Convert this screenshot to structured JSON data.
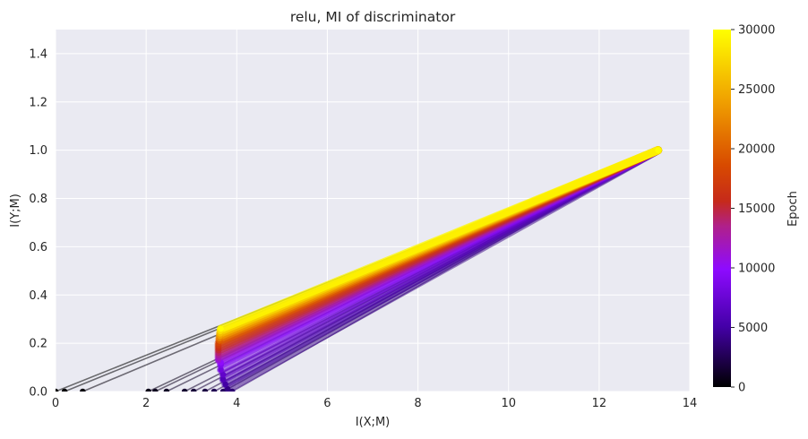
{
  "chart_data": {
    "type": "line",
    "title": "relu, MI of discriminator",
    "xlabel": "I(X;M)",
    "ylabel": "I(Y;M)",
    "xlim": [
      0,
      14
    ],
    "ylim": [
      0,
      1.5
    ],
    "x_ticks": [
      "0",
      "2",
      "4",
      "6",
      "8",
      "10",
      "12",
      "14"
    ],
    "y_ticks": [
      "0.0",
      "0.2",
      "0.4",
      "0.6",
      "0.8",
      "1.0",
      "1.2",
      "1.4"
    ],
    "grid": true,
    "colorbar": {
      "label": "Epoch",
      "range": [
        0,
        30000
      ],
      "ticks": [
        "0",
        "5000",
        "10000",
        "15000",
        "20000",
        "25000",
        "30000"
      ],
      "colormap": "gnuplot",
      "stops": [
        "#000000",
        "#4400a8",
        "#8e0bff",
        "#c61f2a",
        "#d81e00",
        "#f0a000",
        "#ffff00"
      ]
    },
    "endpoint": {
      "x": 13.3,
      "y": 1.0
    },
    "epoch_start_points": [
      {
        "epoch": 0,
        "x": 0.0,
        "y": 0.0
      },
      {
        "epoch": 150,
        "x": 0.2,
        "y": 0.0
      },
      {
        "epoch": 400,
        "x": 0.6,
        "y": 0.0
      },
      {
        "epoch": 700,
        "x": 2.05,
        "y": 0.0
      },
      {
        "epoch": 900,
        "x": 2.2,
        "y": 0.0
      },
      {
        "epoch": 1100,
        "x": 2.45,
        "y": 0.0
      },
      {
        "epoch": 1400,
        "x": 2.85,
        "y": 0.0
      },
      {
        "epoch": 1700,
        "x": 3.05,
        "y": 0.0
      },
      {
        "epoch": 2000,
        "x": 3.3,
        "y": 0.0
      },
      {
        "epoch": 2500,
        "x": 3.5,
        "y": 0.0
      },
      {
        "epoch": 3000,
        "x": 3.7,
        "y": 0.0
      },
      {
        "epoch": 3500,
        "x": 3.9,
        "y": 0.0
      },
      {
        "epoch": 4000,
        "x": 3.8,
        "y": 0.01
      },
      {
        "epoch": 5000,
        "x": 3.75,
        "y": 0.03
      },
      {
        "epoch": 6000,
        "x": 3.7,
        "y": 0.05
      },
      {
        "epoch": 7000,
        "x": 3.7,
        "y": 0.07
      },
      {
        "epoch": 8000,
        "x": 3.65,
        "y": 0.09
      },
      {
        "epoch": 9000,
        "x": 3.65,
        "y": 0.11
      },
      {
        "epoch": 10000,
        "x": 3.65,
        "y": 0.12
      },
      {
        "epoch": 11000,
        "x": 3.6,
        "y": 0.13
      },
      {
        "epoch": 12000,
        "x": 3.6,
        "y": 0.14
      },
      {
        "epoch": 13000,
        "x": 3.6,
        "y": 0.15
      },
      {
        "epoch": 14000,
        "x": 3.6,
        "y": 0.16
      },
      {
        "epoch": 15000,
        "x": 3.6,
        "y": 0.17
      },
      {
        "epoch": 16000,
        "x": 3.6,
        "y": 0.18
      },
      {
        "epoch": 17000,
        "x": 3.6,
        "y": 0.19
      },
      {
        "epoch": 18000,
        "x": 3.6,
        "y": 0.2
      },
      {
        "epoch": 19000,
        "x": 3.62,
        "y": 0.21
      },
      {
        "epoch": 20000,
        "x": 3.62,
        "y": 0.21
      },
      {
        "epoch": 21000,
        "x": 3.62,
        "y": 0.22
      },
      {
        "epoch": 22000,
        "x": 3.62,
        "y": 0.22
      },
      {
        "epoch": 23000,
        "x": 3.63,
        "y": 0.23
      },
      {
        "epoch": 24000,
        "x": 3.63,
        "y": 0.23
      },
      {
        "epoch": 25000,
        "x": 3.63,
        "y": 0.24
      },
      {
        "epoch": 26000,
        "x": 3.64,
        "y": 0.24
      },
      {
        "epoch": 27000,
        "x": 3.64,
        "y": 0.25
      },
      {
        "epoch": 28000,
        "x": 3.64,
        "y": 0.25
      },
      {
        "epoch": 29000,
        "x": 3.65,
        "y": 0.26
      },
      {
        "epoch": 30000,
        "x": 3.65,
        "y": 0.26
      }
    ]
  }
}
